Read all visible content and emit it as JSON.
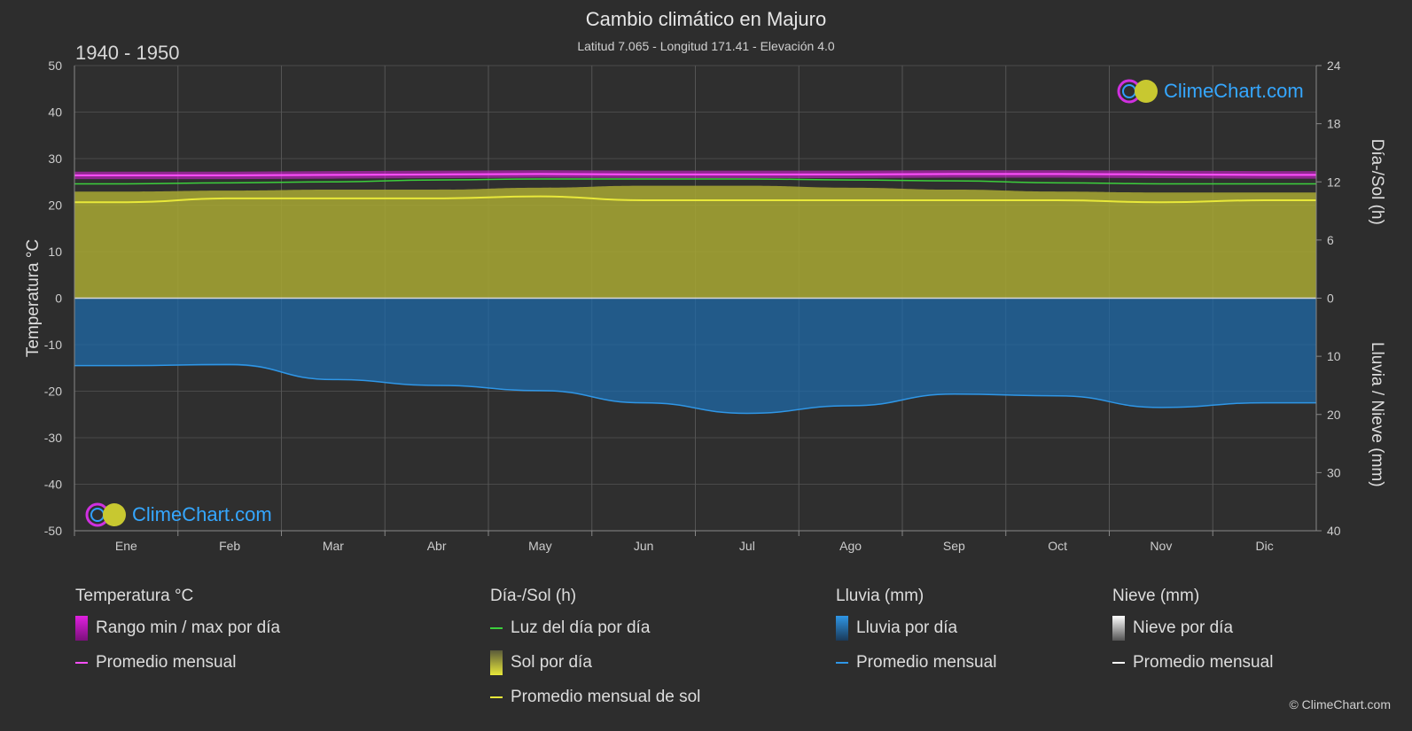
{
  "header": {
    "title": "Cambio climático en Majuro",
    "subtitle": "Latitud 7.065 - Longitud 171.41 - Elevación 4.0",
    "period": "1940 - 1950"
  },
  "logo_text": "ClimeChart.com",
  "copyright": "© ClimeChart.com",
  "colors": {
    "background": "#2d2d2d",
    "temp_range": "#e020e0",
    "temp_avg": "#ff50ff",
    "daylight": "#3ccf3c",
    "sunshine_fill": "#a8a832",
    "sunshine_avg": "#e8e83a",
    "rain_fill": "#1f6aa8",
    "rain_avg": "#2f96e6",
    "snow_avg": "#ffffff",
    "logo_text": "#35a7ff"
  },
  "legend": {
    "temperature": {
      "title": "Temperatura °C",
      "range_label": "Rango min / max por día",
      "avg_label": "Promedio mensual"
    },
    "daysun": {
      "title": "Día-/Sol (h)",
      "daylight_label": "Luz del día por día",
      "sun_label": "Sol por día",
      "sun_avg_label": "Promedio mensual de sol"
    },
    "rain": {
      "title": "Lluvia (mm)",
      "rain_label": "Lluvia por día",
      "avg_label": "Promedio mensual"
    },
    "snow": {
      "title": "Nieve (mm)",
      "snow_label": "Nieve por día",
      "avg_label": "Promedio mensual"
    }
  },
  "chart_data": {
    "type": "area",
    "categories": [
      "Ene",
      "Feb",
      "Mar",
      "Abr",
      "May",
      "Jun",
      "Jul",
      "Ago",
      "Sep",
      "Oct",
      "Nov",
      "Dic"
    ],
    "left_axis": {
      "label": "Temperatura °C",
      "range": [
        -50,
        50
      ],
      "ticks": [
        "50",
        "40",
        "30",
        "20",
        "10",
        "0",
        "-10",
        "-20",
        "-30",
        "-40",
        "-50"
      ]
    },
    "right_axis_top": {
      "label": "Día-/Sol (h)",
      "range": [
        0,
        24
      ],
      "ticks": [
        "24",
        "18",
        "12",
        "6",
        "0"
      ]
    },
    "right_axis_bottom": {
      "label": "Lluvia / Nieve (mm)",
      "range": [
        0,
        40
      ],
      "ticks": [
        "10",
        "20",
        "30",
        "40"
      ]
    },
    "grid": true,
    "series": [
      {
        "name": "Rango min / max por día",
        "axis": "temperature",
        "min": [
          25.6,
          25.6,
          25.7,
          25.8,
          25.9,
          25.8,
          25.8,
          25.8,
          25.9,
          25.9,
          25.8,
          25.7
        ],
        "max": [
          27.2,
          27.2,
          27.3,
          27.4,
          27.5,
          27.4,
          27.4,
          27.4,
          27.5,
          27.5,
          27.4,
          27.3
        ]
      },
      {
        "name": "Promedio mensual",
        "axis": "temperature",
        "values": [
          26.4,
          26.4,
          26.5,
          26.6,
          26.7,
          26.6,
          26.6,
          26.6,
          26.7,
          26.7,
          26.6,
          26.5
        ]
      },
      {
        "name": "Luz del día por día",
        "axis": "hours",
        "values": [
          11.8,
          11.9,
          12.0,
          12.2,
          12.3,
          12.3,
          12.3,
          12.2,
          12.1,
          11.9,
          11.8,
          11.8
        ]
      },
      {
        "name": "Sol por día",
        "axis": "hours",
        "values": [
          11.0,
          11.1,
          11.2,
          11.2,
          11.4,
          11.6,
          11.6,
          11.4,
          11.2,
          11.0,
          10.9,
          10.9
        ]
      },
      {
        "name": "Promedio mensual de sol",
        "axis": "hours",
        "values": [
          9.9,
          10.3,
          10.3,
          10.3,
          10.5,
          10.1,
          10.1,
          10.1,
          10.1,
          10.1,
          9.9,
          10.1
        ]
      },
      {
        "name": "Lluvia por día",
        "axis": "precip",
        "values": [
          11.6,
          11.6,
          14.0,
          15.0,
          16.0,
          18.0,
          19.8,
          18.6,
          16.5,
          16.8,
          18.8,
          18.0
        ]
      },
      {
        "name": "Promedio mensual",
        "axis": "precip",
        "values": [
          11.6,
          11.4,
          14.0,
          15.0,
          15.9,
          18.0,
          19.8,
          18.5,
          16.5,
          16.8,
          18.8,
          18.0
        ]
      }
    ]
  }
}
